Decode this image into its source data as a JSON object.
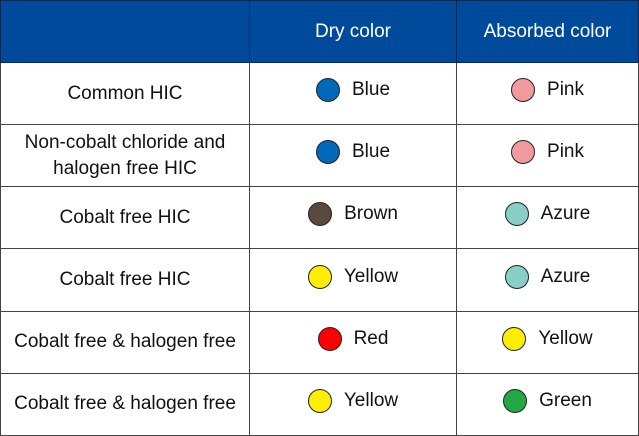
{
  "header": {
    "type": "",
    "dry": "Dry color",
    "absorbed": "Absorbed color"
  },
  "header_color": "#004a9c",
  "rows": [
    {
      "type": "Common HIC",
      "dry": {
        "label": "Blue",
        "color": "#0068b8"
      },
      "absorbed": {
        "label": "Pink",
        "color": "#f09a9e"
      }
    },
    {
      "type": "Non-cobalt chloride and halogen free HIC",
      "dry": {
        "label": "Blue",
        "color": "#0068b8"
      },
      "absorbed": {
        "label": "Pink",
        "color": "#f09a9e"
      }
    },
    {
      "type": "Cobalt free HIC",
      "dry": {
        "label": "Brown",
        "color": "#5a4a3e"
      },
      "absorbed": {
        "label": "Azure",
        "color": "#88cfc8"
      }
    },
    {
      "type": "Cobalt free HIC",
      "dry": {
        "label": "Yellow",
        "color": "#ffee00"
      },
      "absorbed": {
        "label": "Azure",
        "color": "#88cfc8"
      }
    },
    {
      "type": "Cobalt free & halogen free",
      "dry": {
        "label": "Red",
        "color": "#ff0000"
      },
      "absorbed": {
        "label": "Yellow",
        "color": "#ffee00"
      }
    },
    {
      "type": "Cobalt free & halogen free",
      "dry": {
        "label": "Yellow",
        "color": "#ffee00"
      },
      "absorbed": {
        "label": "Green",
        "color": "#22a844"
      }
    }
  ]
}
